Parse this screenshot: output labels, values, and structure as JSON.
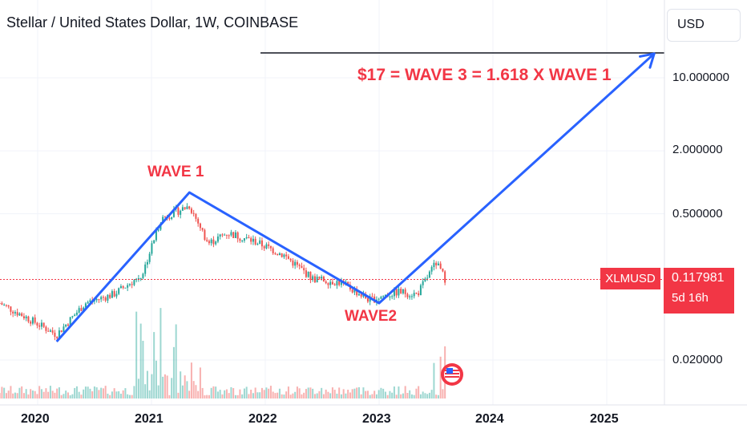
{
  "header": {
    "title": "Stellar / United States Dollar, 1W, COINBASE"
  },
  "currency_button": "USD",
  "symbol_tag": "XLMUSD",
  "price_tag": {
    "price": "0.117981",
    "countdown": "5d 16h"
  },
  "annotations": {
    "target": "$17 = WAVE 3 = 1.618 X WAVE 1",
    "wave1": "WAVE 1",
    "wave2": "WAVE2"
  },
  "colors": {
    "up": "#26a69a",
    "down": "#ef5350",
    "accent": "#f23645",
    "wave_line": "#2962ff"
  },
  "chart_data": {
    "type": "candlestick",
    "title": "Stellar / United States Dollar, 1W, COINBASE",
    "y_scale": "log",
    "y_ticks": [
      "10.000000",
      "2.000000",
      "0.500000",
      "0.020000"
    ],
    "x_ticks": [
      "2020",
      "2021",
      "2022",
      "2023",
      "2024",
      "2025"
    ],
    "last_price": 0.117981,
    "close_series": [
      {
        "date": "2019-09",
        "value": 0.07
      },
      {
        "date": "2019-12",
        "value": 0.05
      },
      {
        "date": "2020-03",
        "value": 0.035
      },
      {
        "date": "2020-06",
        "value": 0.07
      },
      {
        "date": "2020-09",
        "value": 0.085
      },
      {
        "date": "2020-12",
        "value": 0.13
      },
      {
        "date": "2021-02",
        "value": 0.45
      },
      {
        "date": "2021-05",
        "value": 0.6
      },
      {
        "date": "2021-07",
        "value": 0.26
      },
      {
        "date": "2021-09",
        "value": 0.33
      },
      {
        "date": "2021-12",
        "value": 0.27
      },
      {
        "date": "2022-03",
        "value": 0.2
      },
      {
        "date": "2022-06",
        "value": 0.12
      },
      {
        "date": "2022-09",
        "value": 0.11
      },
      {
        "date": "2022-12",
        "value": 0.075
      },
      {
        "date": "2023-03",
        "value": 0.09
      },
      {
        "date": "2023-05",
        "value": 0.085
      },
      {
        "date": "2023-07",
        "value": 0.17
      },
      {
        "date": "2023-08",
        "value": 0.118
      }
    ],
    "wave_path": [
      {
        "date": "2020-03",
        "value": 0.03
      },
      {
        "date": "2021-05",
        "value": 0.8
      },
      {
        "date": "2023-01",
        "value": 0.07
      },
      {
        "date": "2025-06",
        "value": 17
      }
    ],
    "target_level": 17,
    "volume_visible": true
  }
}
